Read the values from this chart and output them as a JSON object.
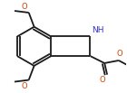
{
  "bg_color": "#ffffff",
  "line_color": "#1a1a1a",
  "bond_lw": 1.3,
  "nh_color": "#3333cc",
  "o_color": "#cc4400",
  "fig_width": 1.4,
  "fig_height": 1.03,
  "dpi": 100,
  "xlim": [
    0,
    140
  ],
  "ylim": [
    0,
    103
  ]
}
